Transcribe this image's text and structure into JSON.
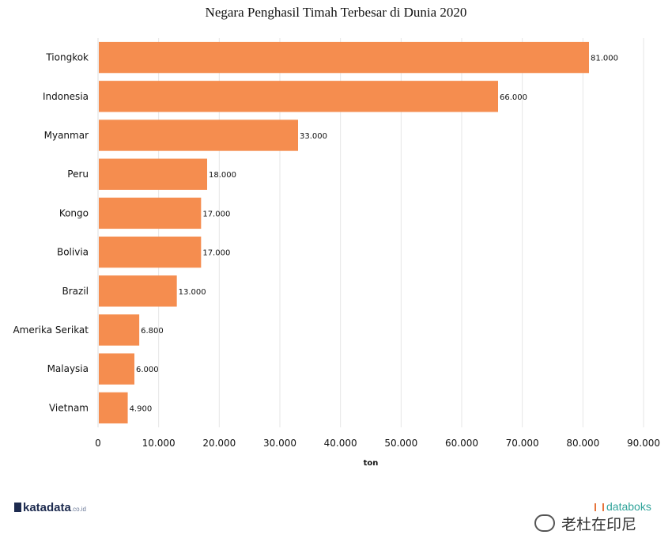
{
  "chart_data": {
    "type": "bar",
    "orientation": "horizontal",
    "title": "Negara Penghasil Timah Terbesar di Dunia 2020",
    "xlabel": "ton",
    "ylabel": "",
    "categories": [
      "Tiongkok",
      "Indonesia",
      "Myanmar",
      "Peru",
      "Kongo",
      "Bolivia",
      "Brazil",
      "Amerika Serikat",
      "Malaysia",
      "Vietnam"
    ],
    "values": [
      81000,
      66000,
      33000,
      18000,
      17000,
      17000,
      13000,
      6800,
      6000,
      4900
    ],
    "value_labels": [
      "81.000",
      "66.000",
      "33.000",
      "18.000",
      "17.000",
      "17.000",
      "13.000",
      "6.800",
      "6.000",
      "4.900"
    ],
    "xlim": [
      0,
      90000
    ],
    "xticks": [
      0,
      10000,
      20000,
      30000,
      40000,
      50000,
      60000,
      70000,
      80000,
      90000
    ],
    "xtick_labels": [
      "0",
      "10.000",
      "20.000",
      "30.000",
      "40.000",
      "50.000",
      "60.000",
      "70.000",
      "80.000",
      "90.000"
    ],
    "grid": true,
    "bar_color": "#f58d4f"
  },
  "branding": {
    "left_logo": "katadata",
    "left_logo_domain": ".co.id",
    "right_logo": "databoks",
    "watermark": "老杜在印尼"
  }
}
